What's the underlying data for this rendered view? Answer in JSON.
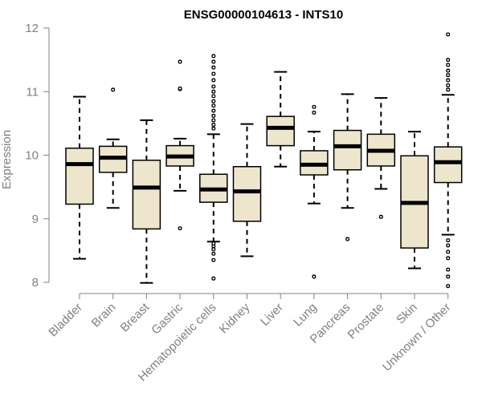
{
  "chart_data": {
    "type": "boxplot",
    "title": "ENSG00000104613 - INTS10",
    "xlabel": "",
    "ylabel": "Expression",
    "ylim": [
      8,
      12
    ],
    "yticks": [
      "8",
      "9",
      "10",
      "11",
      "12"
    ],
    "grid": false,
    "legend": "none",
    "box_fill": "#ede6cc",
    "line_color": "#000000",
    "categories": [
      "Bladder",
      "Brain",
      "Breast",
      "Gastric",
      "Hematopoietic cells",
      "Kidney",
      "Liver",
      "Lung",
      "Pancreas",
      "Prostate",
      "Skin",
      "Unknown / Other"
    ],
    "boxes": [
      {
        "category": "Bladder",
        "whisker_low": 8.37,
        "q1": 9.23,
        "median": 9.86,
        "q3": 10.11,
        "whisker_high": 10.92,
        "outliers": []
      },
      {
        "category": "Brain",
        "whisker_low": 9.17,
        "q1": 9.73,
        "median": 9.96,
        "q3": 10.14,
        "whisker_high": 10.25,
        "outliers": [
          11.03
        ]
      },
      {
        "category": "Breast",
        "whisker_low": 7.99,
        "q1": 8.84,
        "median": 9.49,
        "q3": 9.92,
        "whisker_high": 10.55,
        "outliers": []
      },
      {
        "category": "Gastric",
        "whisker_low": 9.44,
        "q1": 9.83,
        "median": 9.98,
        "q3": 10.15,
        "whisker_high": 10.26,
        "outliers": [
          8.85,
          11.04,
          11.05,
          11.47
        ]
      },
      {
        "category": "Hematopoietic cells",
        "whisker_low": 8.64,
        "q1": 9.26,
        "median": 9.46,
        "q3": 9.7,
        "whisker_high": 10.33,
        "outliers": [
          8.06,
          8.35,
          8.45,
          8.52,
          8.57,
          8.61,
          10.42,
          10.48,
          10.55,
          10.62,
          10.7,
          10.78,
          10.85,
          10.93,
          11.0,
          11.08,
          11.18,
          11.28,
          11.38,
          11.47,
          11.56
        ]
      },
      {
        "category": "Kidney",
        "whisker_low": 8.41,
        "q1": 8.96,
        "median": 9.43,
        "q3": 9.82,
        "whisker_high": 10.49,
        "outliers": []
      },
      {
        "category": "Liver",
        "whisker_low": 9.82,
        "q1": 10.15,
        "median": 10.43,
        "q3": 10.61,
        "whisker_high": 11.31,
        "outliers": []
      },
      {
        "category": "Lung",
        "whisker_low": 9.24,
        "q1": 9.69,
        "median": 9.85,
        "q3": 10.07,
        "whisker_high": 10.37,
        "outliers": [
          8.09,
          10.67,
          10.76
        ]
      },
      {
        "category": "Pancreas",
        "whisker_low": 9.17,
        "q1": 9.77,
        "median": 10.14,
        "q3": 10.39,
        "whisker_high": 10.96,
        "outliers": [
          8.68
        ]
      },
      {
        "category": "Prostate",
        "whisker_low": 9.47,
        "q1": 9.83,
        "median": 10.07,
        "q3": 10.33,
        "whisker_high": 10.9,
        "outliers": [
          9.03
        ]
      },
      {
        "category": "Skin",
        "whisker_low": 8.22,
        "q1": 8.54,
        "median": 9.25,
        "q3": 9.99,
        "whisker_high": 10.37,
        "outliers": []
      },
      {
        "category": "Unknown / Other",
        "whisker_low": 8.75,
        "q1": 9.57,
        "median": 9.89,
        "q3": 10.13,
        "whisker_high": 10.95,
        "outliers": [
          7.94,
          8.09,
          8.2,
          8.38,
          8.48,
          8.58,
          8.66,
          11.03,
          11.1,
          11.18,
          11.26,
          11.33,
          11.42,
          11.5,
          11.9
        ]
      }
    ]
  }
}
